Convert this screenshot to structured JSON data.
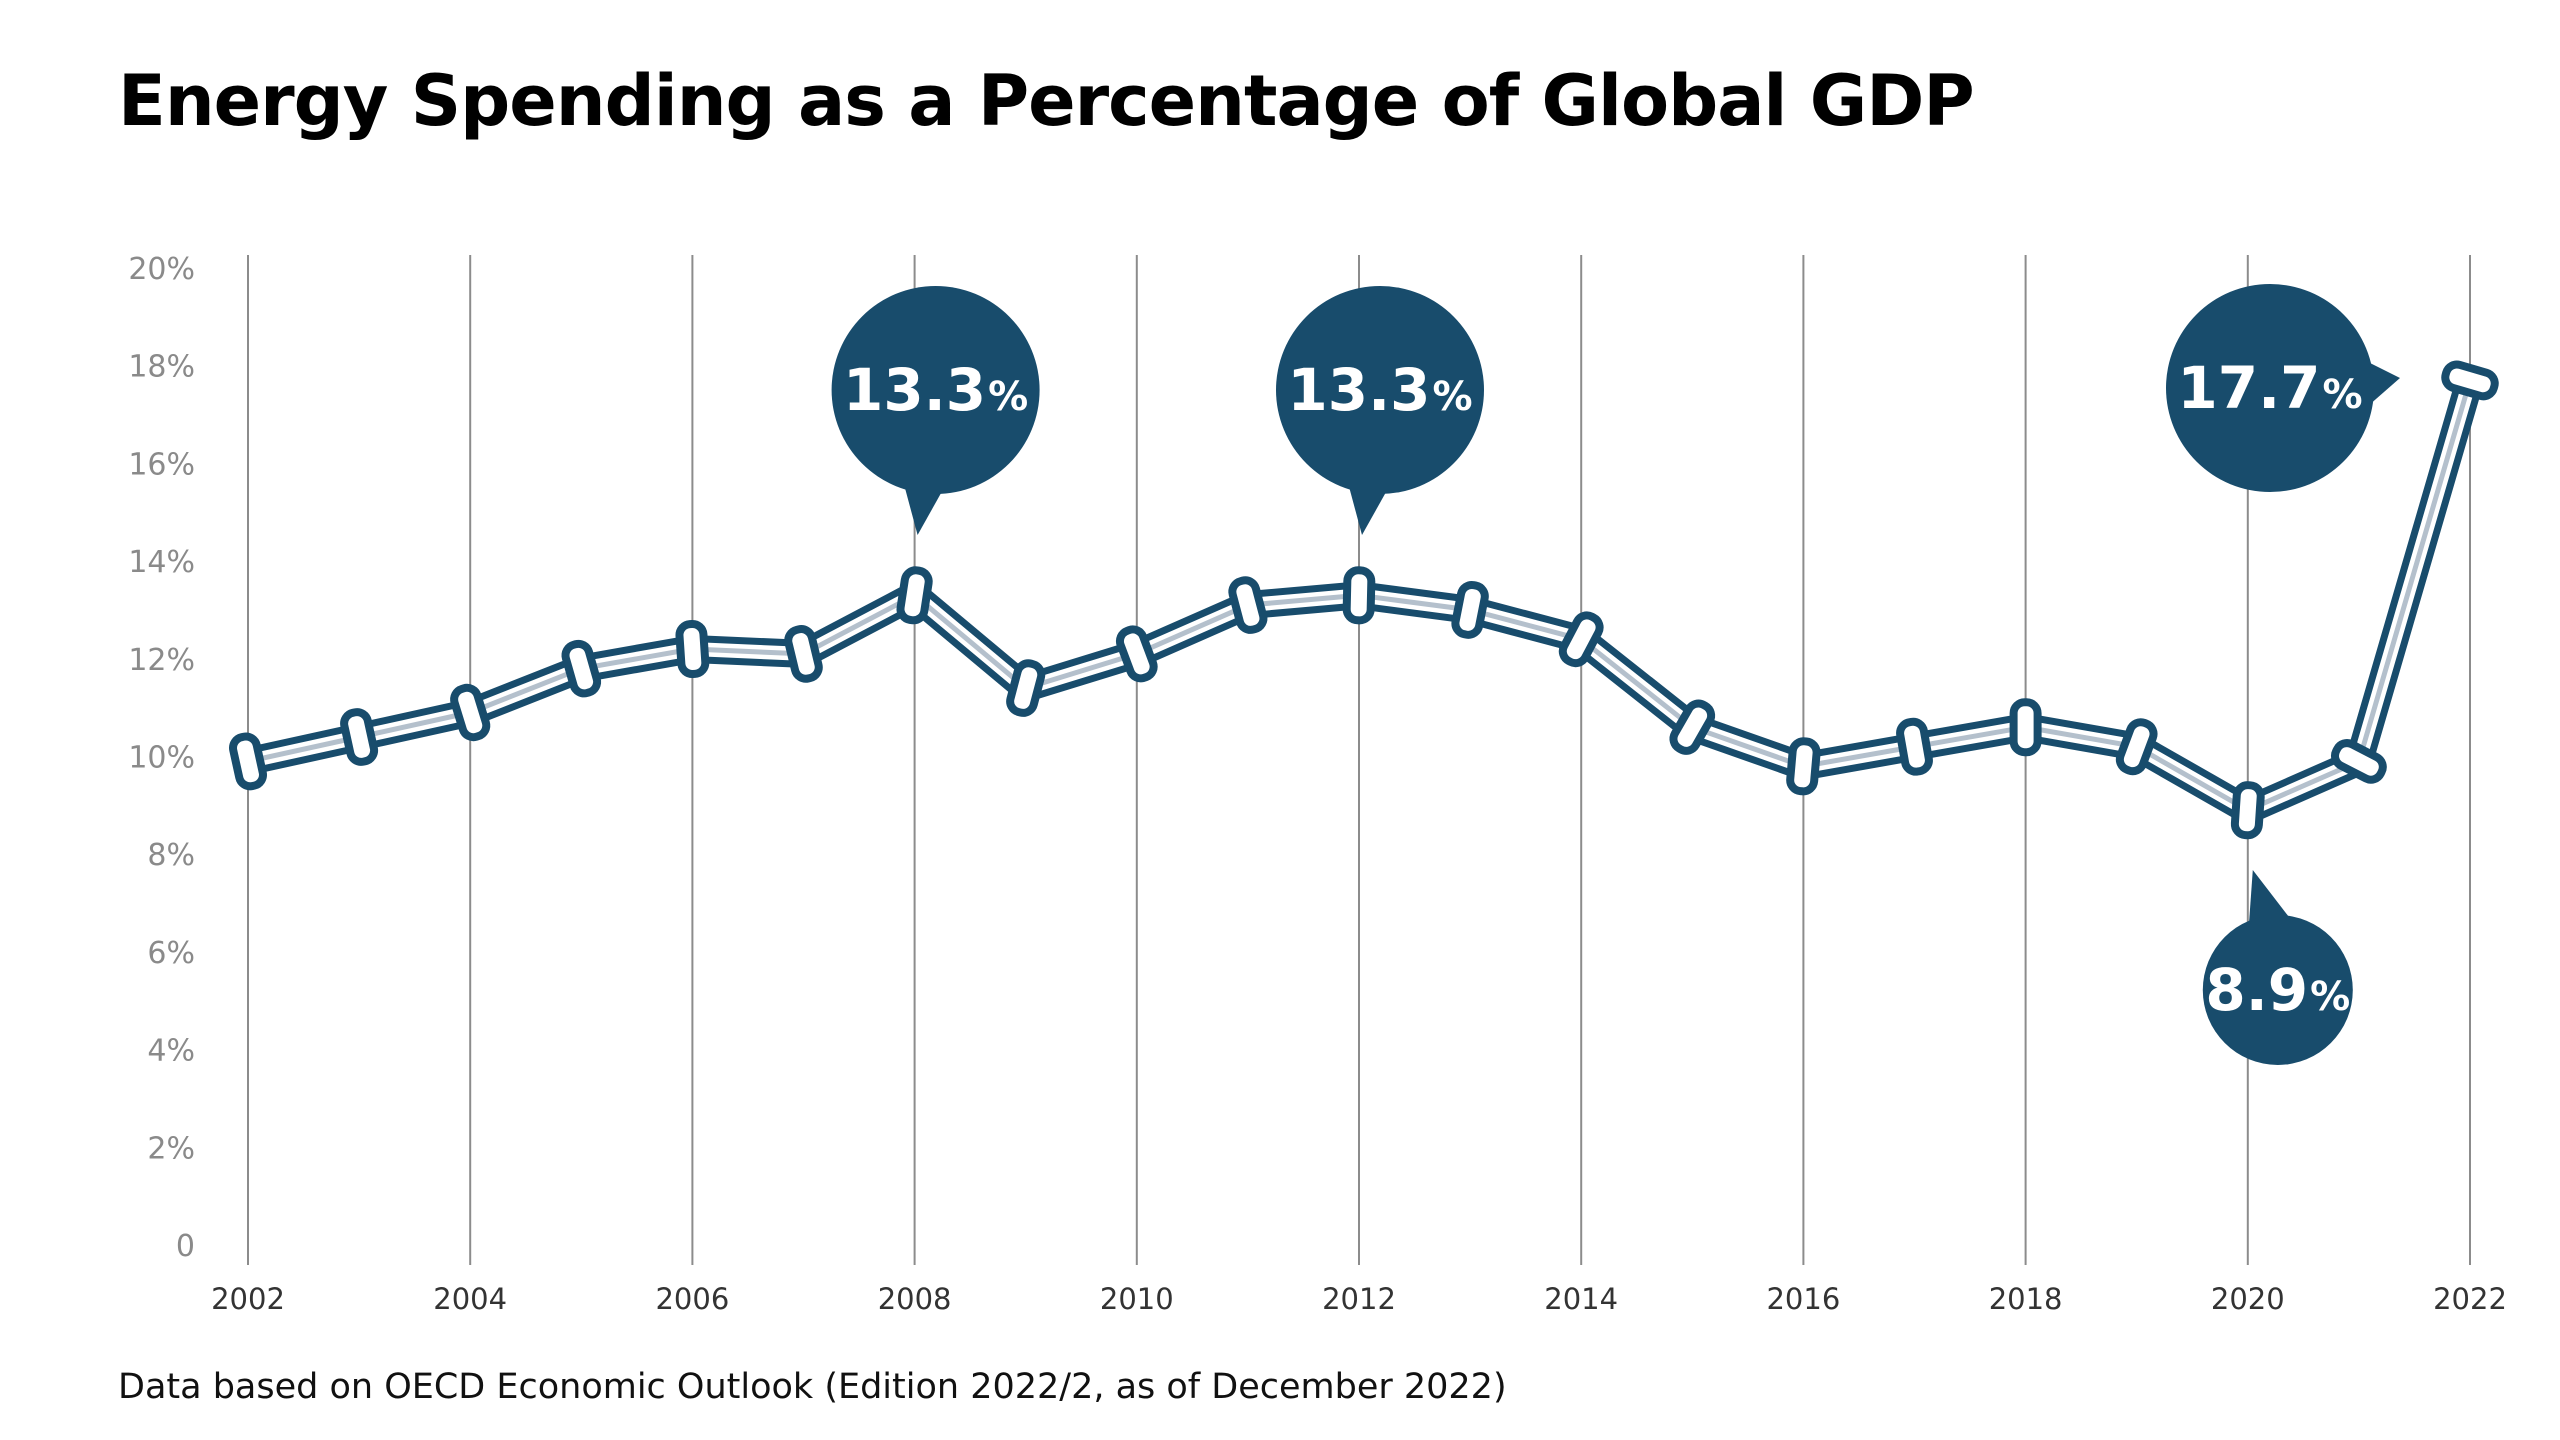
{
  "title": "Energy Spending as a Percentage of Global GDP",
  "source_note": "Data based on OECD Economic Outlook (Edition 2022/2, as of December 2022)",
  "colors": {
    "line_dark": "#184c6c",
    "line_light": "#b4c0cc",
    "callout_fill": "#184c6c",
    "grid": "#8c8c8c"
  },
  "chart_data": {
    "type": "line",
    "title": "Energy Spending as a Percentage of Global GDP",
    "xlabel": "",
    "ylabel": "",
    "x": [
      2002,
      2003,
      2004,
      2005,
      2006,
      2007,
      2008,
      2009,
      2010,
      2011,
      2012,
      2013,
      2014,
      2015,
      2016,
      2017,
      2018,
      2019,
      2020,
      2021,
      2022
    ],
    "series": [
      {
        "values": [
          9.9,
          10.4,
          10.9,
          11.8,
          12.2,
          12.1,
          13.3,
          11.4,
          12.1,
          13.1,
          13.3,
          13.0,
          12.4,
          10.6,
          9.8,
          10.2,
          10.6,
          10.2,
          8.9,
          9.9,
          17.7
        ]
      }
    ],
    "xlim": [
      2002,
      2022
    ],
    "ylim": [
      0,
      20
    ],
    "x_ticks": [
      2002,
      2004,
      2006,
      2008,
      2010,
      2012,
      2014,
      2016,
      2018,
      2020,
      2022
    ],
    "y_ticks": [
      0,
      2,
      4,
      6,
      8,
      10,
      12,
      14,
      16,
      18,
      20
    ],
    "y_tick_labels": [
      "0",
      "2%",
      "4%",
      "6%",
      "8%",
      "10%",
      "12%",
      "14%",
      "16%",
      "18%",
      "20%"
    ],
    "grid": "vertical lines at x ticks",
    "legend": "none",
    "annotations": [
      {
        "x": 2008,
        "text": "13.3",
        "unit": "%",
        "placement": "above"
      },
      {
        "x": 2012,
        "text": "13.3",
        "unit": "%",
        "placement": "above"
      },
      {
        "x": 2022,
        "text": "17.7",
        "unit": "%",
        "placement": "left"
      },
      {
        "x": 2020,
        "text": "8.9",
        "unit": "%",
        "placement": "below"
      }
    ]
  }
}
